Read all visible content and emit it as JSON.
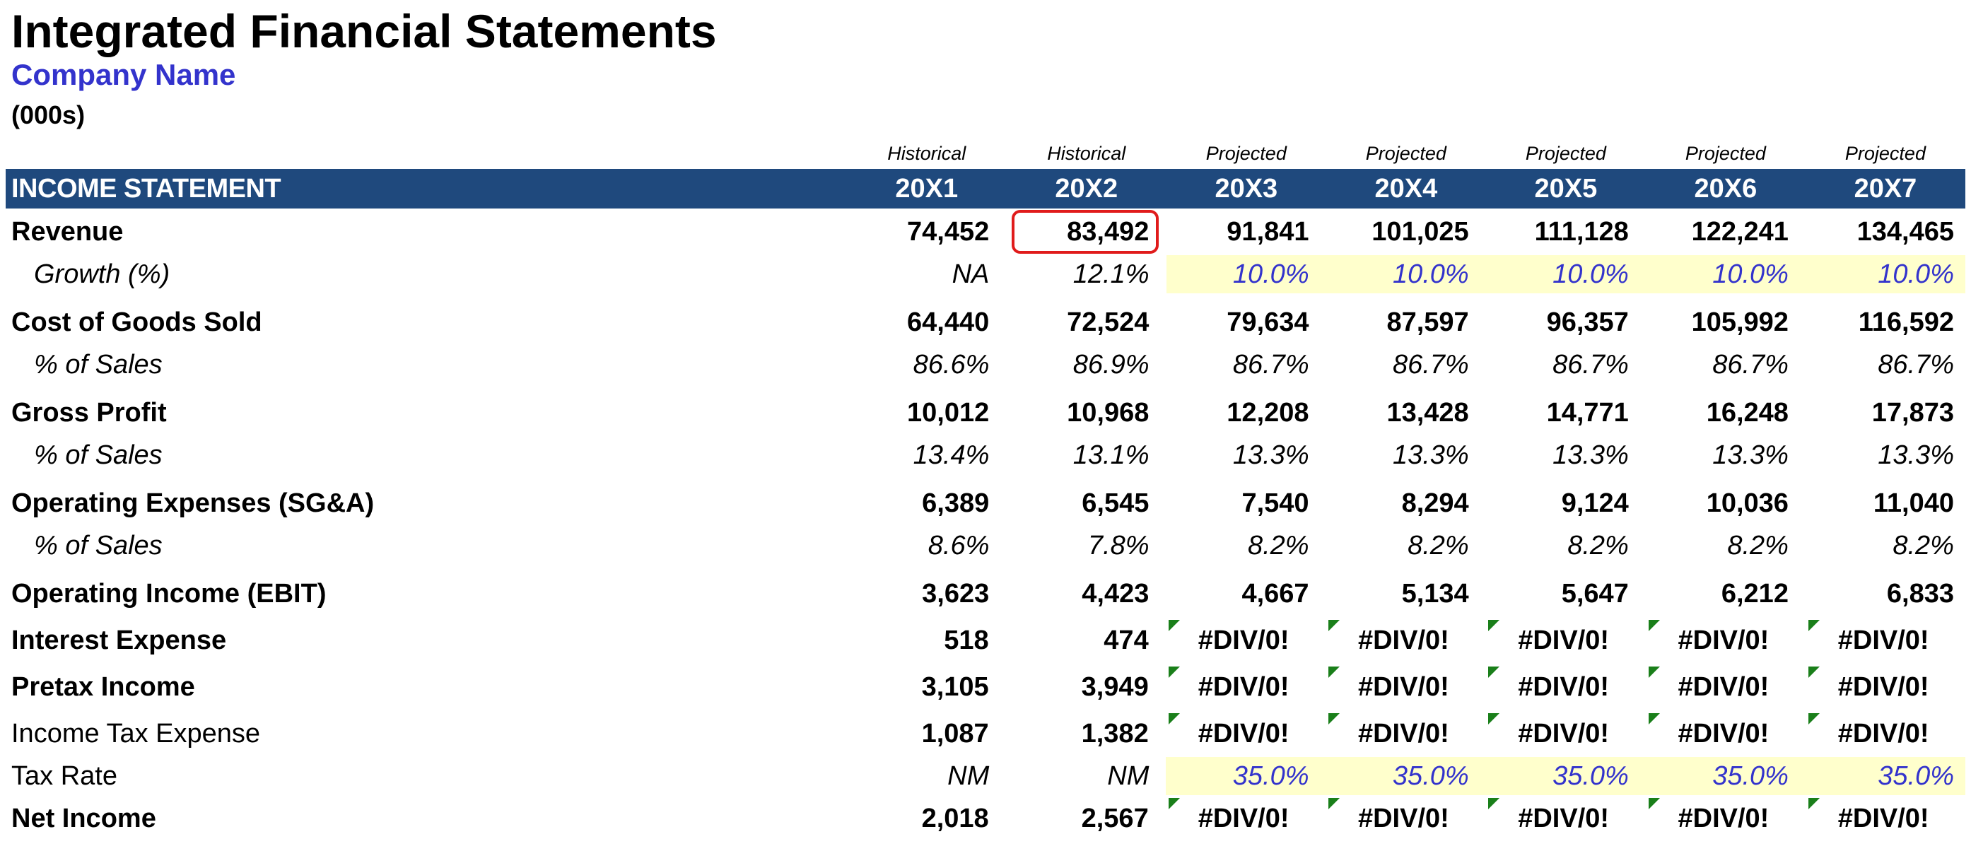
{
  "header": {
    "title": "Integrated Financial Statements",
    "company": "Company Name",
    "units": "(000s)"
  },
  "colors": {
    "header_bar": "#1f497d",
    "input_fill": "#ffffcc",
    "input_text": "#3333cc",
    "error_flag": "#1a7f1a",
    "highlight": "#e01b1b"
  },
  "period_types": [
    "Historical",
    "Historical",
    "Projected",
    "Projected",
    "Projected",
    "Projected",
    "Projected"
  ],
  "table": {
    "section_label": "INCOME STATEMENT",
    "years": [
      "20X1",
      "20X2",
      "20X3",
      "20X4",
      "20X5",
      "20X6",
      "20X7"
    ],
    "rows": [
      {
        "label": "Revenue",
        "values": [
          "74,452",
          "83,492",
          "91,841",
          "101,025",
          "111,128",
          "122,241",
          "134,465"
        ]
      },
      {
        "label": "Growth (%)",
        "values": [
          "NA",
          "12.1%",
          "10.0%",
          "10.0%",
          "10.0%",
          "10.0%",
          "10.0%"
        ]
      },
      {
        "label": "Cost of Goods Sold",
        "values": [
          "64,440",
          "72,524",
          "79,634",
          "87,597",
          "96,357",
          "105,992",
          "116,592"
        ]
      },
      {
        "label": "% of Sales",
        "values": [
          "86.6%",
          "86.9%",
          "86.7%",
          "86.7%",
          "86.7%",
          "86.7%",
          "86.7%"
        ]
      },
      {
        "label": "Gross Profit",
        "values": [
          "10,012",
          "10,968",
          "12,208",
          "13,428",
          "14,771",
          "16,248",
          "17,873"
        ]
      },
      {
        "label": "% of Sales",
        "values": [
          "13.4%",
          "13.1%",
          "13.3%",
          "13.3%",
          "13.3%",
          "13.3%",
          "13.3%"
        ]
      },
      {
        "label": "Operating Expenses (SG&A)",
        "values": [
          "6,389",
          "6,545",
          "7,540",
          "8,294",
          "9,124",
          "10,036",
          "11,040"
        ]
      },
      {
        "label": "% of Sales",
        "values": [
          "8.6%",
          "7.8%",
          "8.2%",
          "8.2%",
          "8.2%",
          "8.2%",
          "8.2%"
        ]
      },
      {
        "label": "Operating Income (EBIT)",
        "values": [
          "3,623",
          "4,423",
          "4,667",
          "5,134",
          "5,647",
          "6,212",
          "6,833"
        ]
      },
      {
        "label": "Interest Expense",
        "values": [
          "518",
          "474",
          "#DIV/0!",
          "#DIV/0!",
          "#DIV/0!",
          "#DIV/0!",
          "#DIV/0!"
        ]
      },
      {
        "label": "Pretax Income",
        "values": [
          "3,105",
          "3,949",
          "#DIV/0!",
          "#DIV/0!",
          "#DIV/0!",
          "#DIV/0!",
          "#DIV/0!"
        ]
      },
      {
        "label": "Income Tax Expense",
        "values": [
          "1,087",
          "1,382",
          "#DIV/0!",
          "#DIV/0!",
          "#DIV/0!",
          "#DIV/0!",
          "#DIV/0!"
        ]
      },
      {
        "label": "Tax Rate",
        "values": [
          "NM",
          "NM",
          "35.0%",
          "35.0%",
          "35.0%",
          "35.0%",
          "35.0%"
        ]
      },
      {
        "label": "Net Income",
        "values": [
          "2,018",
          "2,567",
          "#DIV/0!",
          "#DIV/0!",
          "#DIV/0!",
          "#DIV/0!",
          "#DIV/0!"
        ]
      }
    ]
  }
}
